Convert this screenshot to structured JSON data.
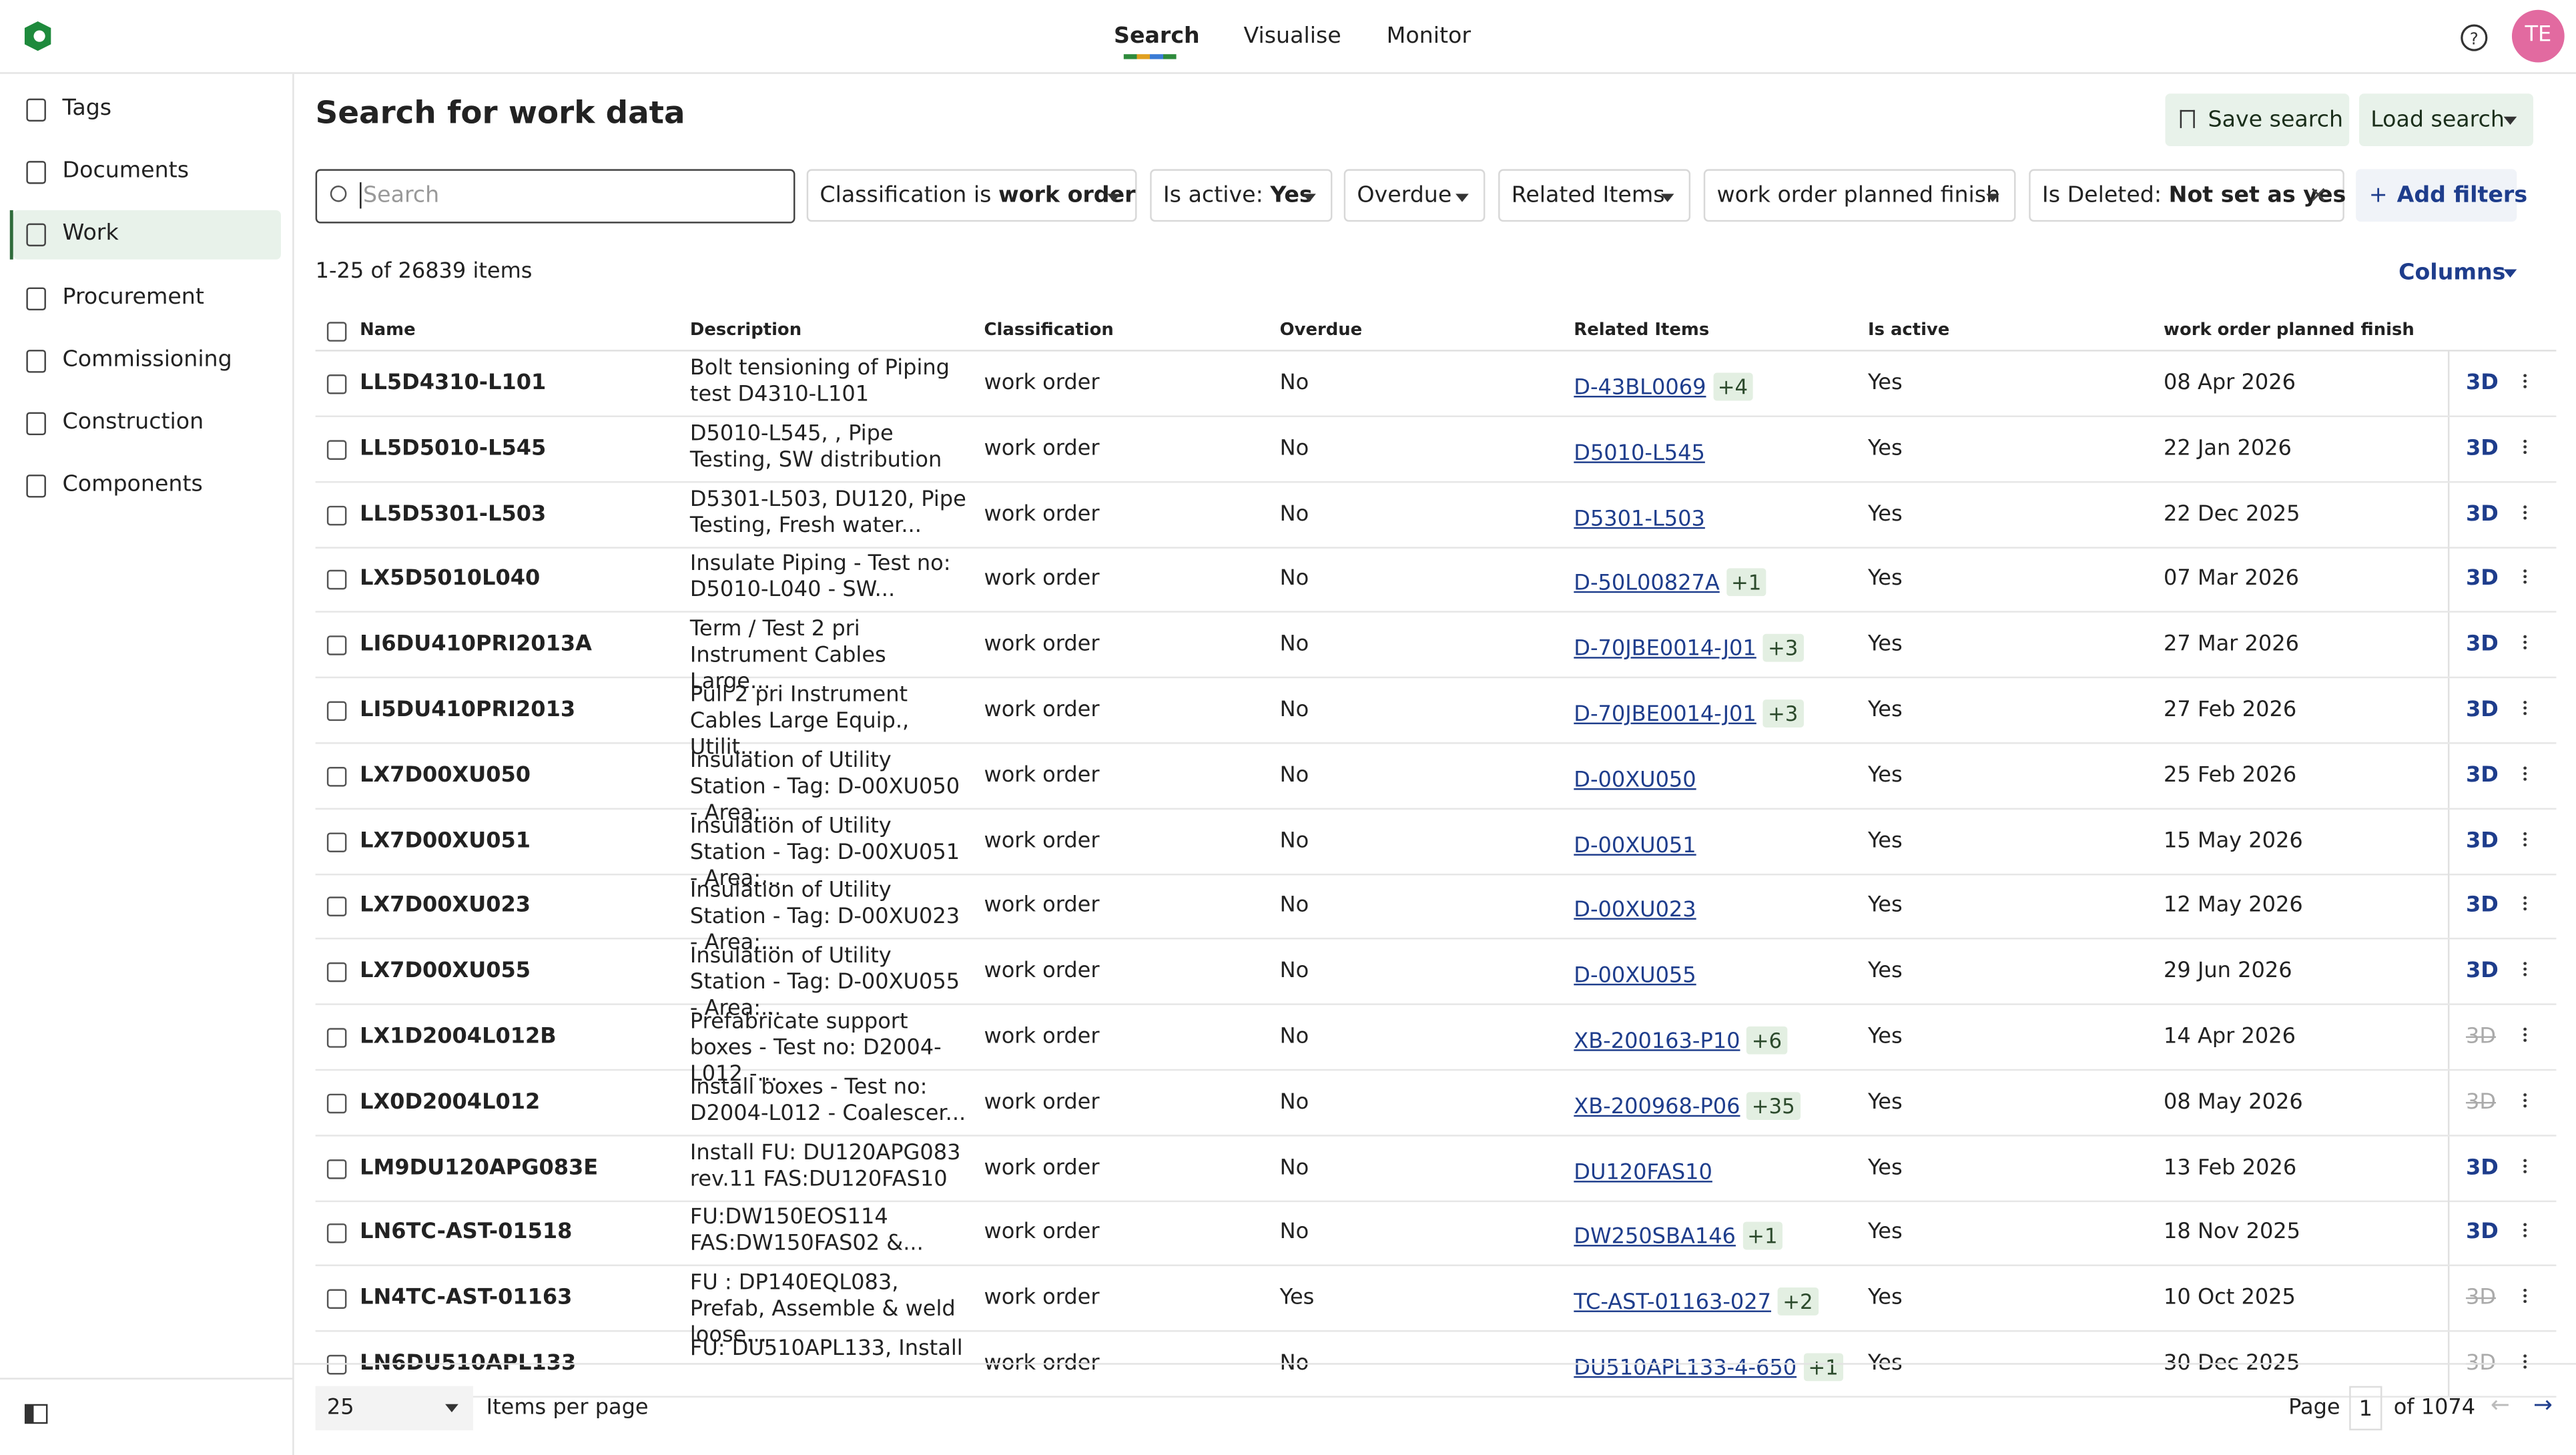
{
  "header": {
    "nav": [
      "Search",
      "Visualise",
      "Monitor"
    ],
    "active_nav": 0,
    "avatar": "TE"
  },
  "sidebar": {
    "items": [
      "Tags",
      "Documents",
      "Work",
      "Procurement",
      "Commissioning",
      "Construction",
      "Components"
    ],
    "active": 2
  },
  "page": {
    "title": "Search for work data",
    "save_search": "Save search",
    "load_search": "Load search",
    "search_placeholder": "Search",
    "add_filters": "Add filters",
    "count": "1-25 of 26839 items",
    "columns_button": "Columns",
    "filters": [
      {
        "label": "Classification is",
        "value": "work order"
      },
      {
        "label": "Is active:",
        "value": "Yes"
      },
      {
        "label": "Overdue"
      },
      {
        "label": "Related Items"
      },
      {
        "label": "work order planned finish"
      },
      {
        "label": "Is Deleted:",
        "value": "Not set as yes",
        "clearable": true
      }
    ]
  },
  "table": {
    "columns": [
      "Name",
      "Description",
      "Classification",
      "Overdue",
      "Related Items",
      "Is active",
      "work order planned finish"
    ],
    "rows": [
      {
        "name": "LL5D4310-L101",
        "description": "Bolt tensioning of Piping test D4310-L101",
        "classification": "work order",
        "overdue": "No",
        "related": "D-43BL0069",
        "related_more": "+4",
        "active": "Yes",
        "finish": "08 Apr 2026",
        "view": "3D",
        "view_enabled": true
      },
      {
        "name": "LL5D5010-L545",
        "description": "D5010-L545, , Pipe Testing, SW distribution",
        "classification": "work order",
        "overdue": "No",
        "related": "D5010-L545",
        "active": "Yes",
        "finish": "22 Jan 2026",
        "view": "3D",
        "view_enabled": true
      },
      {
        "name": "LL5D5301-L503",
        "description": "D5301-L503, DU120, Pipe Testing, Fresh water...",
        "classification": "work order",
        "overdue": "No",
        "related": "D5301-L503",
        "active": "Yes",
        "finish": "22 Dec 2025",
        "view": "3D",
        "view_enabled": true
      },
      {
        "name": "LX5D5010L040",
        "description": "Insulate Piping - Test no: D5010-L040 - SW...",
        "classification": "work order",
        "overdue": "No",
        "related": "D-50L00827A",
        "related_more": "+1",
        "active": "Yes",
        "finish": "07 Mar 2026",
        "view": "3D",
        "view_enabled": true
      },
      {
        "name": "LI6DU410PRI2013A",
        "description": "Term / Test 2 pri Instrument Cables Large...",
        "classification": "work order",
        "overdue": "No",
        "related": "D-70JBE0014-J01",
        "related_more": "+3",
        "active": "Yes",
        "finish": "27 Mar 2026",
        "view": "3D",
        "view_enabled": true
      },
      {
        "name": "LI5DU410PRI2013",
        "description": "Pull 2 pri Instrument Cables Large Equip., Utilit...",
        "classification": "work order",
        "overdue": "No",
        "related": "D-70JBE0014-J01",
        "related_more": "+3",
        "active": "Yes",
        "finish": "27 Feb 2026",
        "view": "3D",
        "view_enabled": true
      },
      {
        "name": "LX7D00XU050",
        "description": "Insulation of Utility Station - Tag: D-00XU050 - Area:...",
        "classification": "work order",
        "overdue": "No",
        "related": "D-00XU050",
        "active": "Yes",
        "finish": "25 Feb 2026",
        "view": "3D",
        "view_enabled": true
      },
      {
        "name": "LX7D00XU051",
        "description": "Insulation of Utility Station - Tag: D-00XU051 - Area:...",
        "classification": "work order",
        "overdue": "No",
        "related": "D-00XU051",
        "active": "Yes",
        "finish": "15 May 2026",
        "view": "3D",
        "view_enabled": true
      },
      {
        "name": "LX7D00XU023",
        "description": "Insulation of Utility Station - Tag: D-00XU023 - Area:...",
        "classification": "work order",
        "overdue": "No",
        "related": "D-00XU023",
        "active": "Yes",
        "finish": "12 May 2026",
        "view": "3D",
        "view_enabled": true
      },
      {
        "name": "LX7D00XU055",
        "description": "Insulation of Utility Station - Tag: D-00XU055 - Area:...",
        "classification": "work order",
        "overdue": "No",
        "related": "D-00XU055",
        "active": "Yes",
        "finish": "29 Jun 2026",
        "view": "3D",
        "view_enabled": true
      },
      {
        "name": "LX1D2004L012B",
        "description": "Prefabricate support boxes - Test no: D2004-L012 -...",
        "classification": "work order",
        "overdue": "No",
        "related": "XB-200163-P10",
        "related_more": "+6",
        "active": "Yes",
        "finish": "14 Apr 2026",
        "view": "3D",
        "view_enabled": false
      },
      {
        "name": "LX0D2004L012",
        "description": "Install boxes - Test no: D2004-L012 - Coalescer...",
        "classification": "work order",
        "overdue": "No",
        "related": "XB-200968-P06",
        "related_more": "+35",
        "active": "Yes",
        "finish": "08 May 2026",
        "view": "3D",
        "view_enabled": false
      },
      {
        "name": "LM9DU120APG083E",
        "description": "Install FU: DU120APG083 rev.11 FAS:DU120FAS10",
        "classification": "work order",
        "overdue": "No",
        "related": "DU120FAS10",
        "active": "Yes",
        "finish": "13 Feb 2026",
        "view": "3D",
        "view_enabled": true
      },
      {
        "name": "LN6TC-AST-01518",
        "description": "FU:DW150EOS114 FAS:DW150FAS02 &...",
        "classification": "work order",
        "overdue": "No",
        "related": "DW250SBA146",
        "related_more": "+1",
        "active": "Yes",
        "finish": "18 Nov 2025",
        "view": "3D",
        "view_enabled": true
      },
      {
        "name": "LN4TC-AST-01163",
        "description": "FU : DP140EQL083, Prefab, Assemble & weld loose...",
        "classification": "work order",
        "overdue": "Yes",
        "related": "TC-AST-01163-027",
        "related_more": "+2",
        "active": "Yes",
        "finish": "10 Oct 2025",
        "view": "3D",
        "view_enabled": false
      },
      {
        "name": "LN6DU510APL133",
        "description": "FU: DU510APL133, Install",
        "classification": "work order",
        "overdue": "No",
        "related": "DU510APL133-4-650",
        "related_more": "+1",
        "active": "Yes",
        "finish": "30 Dec 2025",
        "view": "3D",
        "view_enabled": false
      }
    ]
  },
  "footer": {
    "per_page": "25",
    "per_page_label": "Items per page",
    "page_label": "Page",
    "page": "1",
    "page_total": "of 1074"
  }
}
